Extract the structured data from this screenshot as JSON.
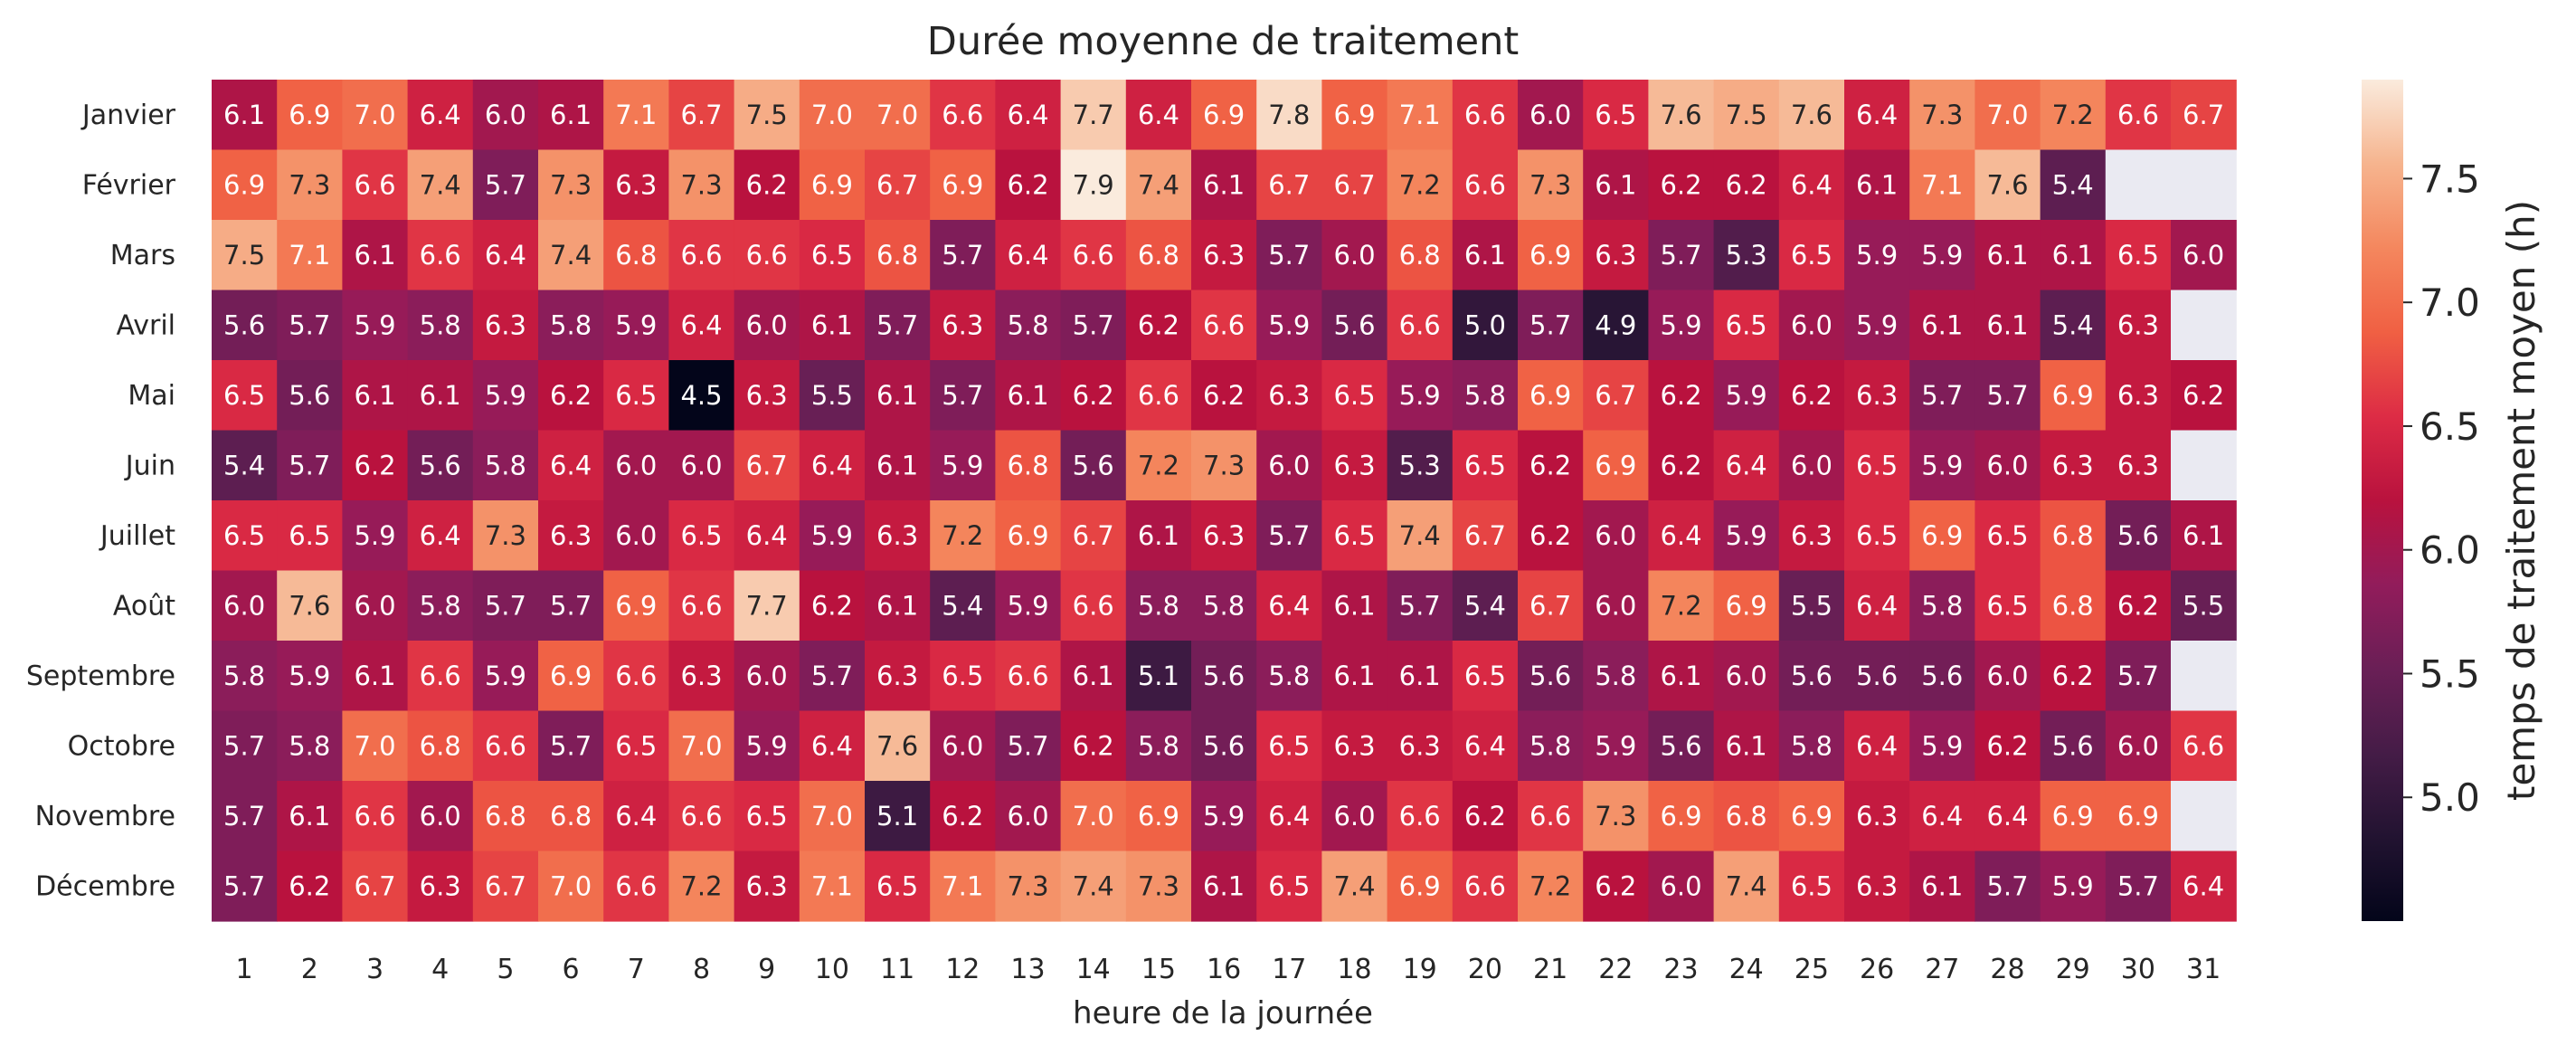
{
  "chart_data": {
    "type": "heatmap",
    "title": "Durée moyenne de traitement",
    "xlabel": "heure de la journée",
    "ylabel": "",
    "colorbar_label": "temps de traitement moyen (h)",
    "colormap": "rocket",
    "vmin": 4.5,
    "vmax": 7.9,
    "missing_color": "#eaeaf2",
    "colorbar_ticks": [
      "5.0",
      "5.5",
      "6.0",
      "6.5",
      "7.0",
      "7.5"
    ],
    "x": [
      "1",
      "2",
      "3",
      "4",
      "5",
      "6",
      "7",
      "8",
      "9",
      "10",
      "11",
      "12",
      "13",
      "14",
      "15",
      "16",
      "17",
      "18",
      "19",
      "20",
      "21",
      "22",
      "23",
      "24",
      "25",
      "26",
      "27",
      "28",
      "29",
      "30",
      "31"
    ],
    "y": [
      "Janvier",
      "Février",
      "Mars",
      "Avril",
      "Mai",
      "Juin",
      "Juillet",
      "Août",
      "Septembre",
      "Octobre",
      "Novembre",
      "Décembre"
    ],
    "values": [
      [
        6.1,
        6.9,
        7.0,
        6.4,
        6.0,
        6.1,
        7.1,
        6.7,
        7.5,
        7.0,
        7.0,
        6.6,
        6.4,
        7.7,
        6.4,
        6.9,
        7.8,
        6.9,
        7.1,
        6.6,
        6.0,
        6.5,
        7.6,
        7.5,
        7.6,
        6.4,
        7.3,
        7.0,
        7.2,
        6.6,
        6.7
      ],
      [
        6.9,
        7.3,
        6.6,
        7.4,
        5.7,
        7.3,
        6.3,
        7.3,
        6.2,
        6.9,
        6.7,
        6.9,
        6.2,
        7.9,
        7.4,
        6.1,
        6.7,
        6.7,
        7.2,
        6.6,
        7.3,
        6.1,
        6.2,
        6.2,
        6.4,
        6.1,
        7.1,
        7.6,
        5.4,
        null,
        null
      ],
      [
        7.5,
        7.1,
        6.1,
        6.6,
        6.4,
        7.4,
        6.8,
        6.6,
        6.6,
        6.5,
        6.8,
        5.7,
        6.4,
        6.6,
        6.8,
        6.3,
        5.7,
        6.0,
        6.8,
        6.1,
        6.9,
        6.3,
        5.7,
        5.3,
        6.5,
        5.9,
        5.9,
        6.1,
        6.1,
        6.5,
        6.0
      ],
      [
        5.6,
        5.7,
        5.9,
        5.8,
        6.3,
        5.8,
        5.9,
        6.4,
        6.0,
        6.1,
        5.7,
        6.3,
        5.8,
        5.7,
        6.2,
        6.6,
        5.9,
        5.6,
        6.6,
        5.0,
        5.7,
        4.9,
        5.9,
        6.5,
        6.0,
        5.9,
        6.1,
        6.1,
        5.4,
        6.3,
        null
      ],
      [
        6.5,
        5.6,
        6.1,
        6.1,
        5.9,
        6.2,
        6.5,
        4.5,
        6.3,
        5.5,
        6.1,
        5.7,
        6.1,
        6.2,
        6.6,
        6.2,
        6.3,
        6.5,
        5.9,
        5.8,
        6.9,
        6.7,
        6.2,
        5.9,
        6.2,
        6.3,
        5.7,
        5.7,
        6.9,
        6.3,
        6.2
      ],
      [
        5.4,
        5.7,
        6.2,
        5.6,
        5.8,
        6.4,
        6.0,
        6.0,
        6.7,
        6.4,
        6.1,
        5.9,
        6.8,
        5.6,
        7.2,
        7.3,
        6.0,
        6.3,
        5.3,
        6.5,
        6.2,
        6.9,
        6.2,
        6.4,
        6.0,
        6.5,
        5.9,
        6.0,
        6.3,
        6.3,
        null
      ],
      [
        6.5,
        6.5,
        5.9,
        6.4,
        7.3,
        6.3,
        6.0,
        6.5,
        6.4,
        5.9,
        6.3,
        7.2,
        6.9,
        6.7,
        6.1,
        6.3,
        5.7,
        6.5,
        7.4,
        6.7,
        6.2,
        6.0,
        6.4,
        5.9,
        6.3,
        6.5,
        6.9,
        6.5,
        6.8,
        5.6,
        6.1
      ],
      [
        6.0,
        7.6,
        6.0,
        5.8,
        5.7,
        5.7,
        6.9,
        6.6,
        7.7,
        6.2,
        6.1,
        5.4,
        5.9,
        6.6,
        5.8,
        5.8,
        6.4,
        6.1,
        5.7,
        5.4,
        6.7,
        6.0,
        7.2,
        6.9,
        5.5,
        6.4,
        5.8,
        6.5,
        6.8,
        6.2,
        5.5
      ],
      [
        5.8,
        5.9,
        6.1,
        6.6,
        5.9,
        6.9,
        6.6,
        6.3,
        6.0,
        5.7,
        6.3,
        6.5,
        6.6,
        6.1,
        5.1,
        5.6,
        5.8,
        6.1,
        6.1,
        6.5,
        5.6,
        5.8,
        6.1,
        6.0,
        5.6,
        5.6,
        5.6,
        6.0,
        6.2,
        5.7,
        null
      ],
      [
        5.7,
        5.8,
        7.0,
        6.8,
        6.6,
        5.7,
        6.5,
        7.0,
        5.9,
        6.4,
        7.6,
        6.0,
        5.7,
        6.2,
        5.8,
        5.6,
        6.5,
        6.3,
        6.3,
        6.4,
        5.8,
        5.9,
        5.6,
        6.1,
        5.8,
        6.4,
        5.9,
        6.2,
        5.6,
        6.0,
        6.6
      ],
      [
        5.7,
        6.1,
        6.6,
        6.0,
        6.8,
        6.8,
        6.4,
        6.6,
        6.5,
        7.0,
        5.1,
        6.2,
        6.0,
        7.0,
        6.9,
        5.9,
        6.4,
        6.0,
        6.6,
        6.2,
        6.6,
        7.3,
        6.9,
        6.8,
        6.9,
        6.3,
        6.4,
        6.4,
        6.9,
        6.9,
        null
      ],
      [
        5.7,
        6.2,
        6.7,
        6.3,
        6.7,
        7.0,
        6.6,
        7.2,
        6.3,
        7.1,
        6.5,
        7.1,
        7.3,
        7.4,
        7.3,
        6.1,
        6.5,
        7.4,
        6.9,
        6.6,
        7.2,
        6.2,
        6.0,
        7.4,
        6.5,
        6.3,
        6.1,
        5.7,
        5.9,
        5.7,
        6.4
      ]
    ]
  }
}
